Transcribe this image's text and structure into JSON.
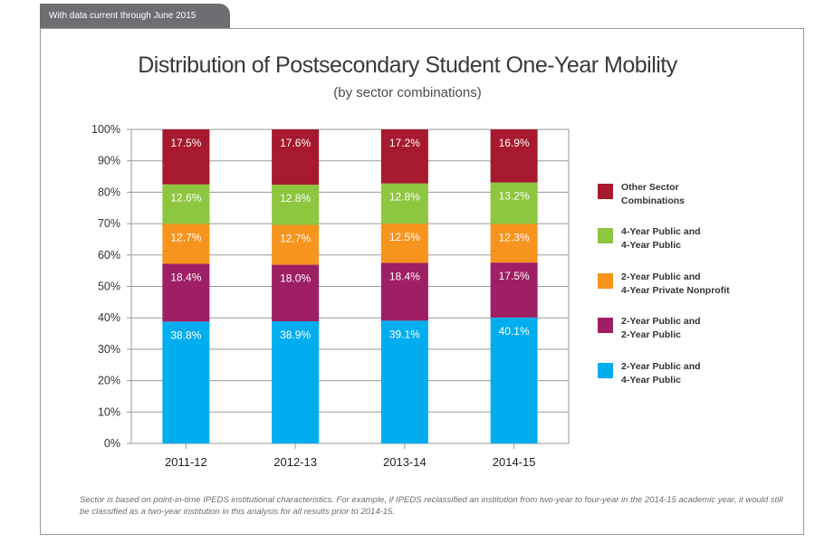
{
  "header_tab": "With data current through June 2015",
  "footnote": "Sector is based on point-in-time IPEDS institutional characteristics. For example, if IPEDS reclassified an institution from two-year to four-year in the 2014-15 academic year, it would still be classified as a two-year institution in this analysis for all results prior to 2014-15.",
  "chart_data": {
    "type": "bar",
    "stacked": true,
    "title": "Distribution of Postsecondary Student One-Year Mobility",
    "subtitle": "(by sector combinations)",
    "xlabel": "",
    "ylabel": "",
    "ylim": [
      0,
      100
    ],
    "yticks": [
      "0%",
      "10%",
      "20%",
      "30%",
      "40%",
      "50%",
      "60%",
      "70%",
      "80%",
      "90%",
      "100%"
    ],
    "grid": true,
    "legend_position": "right",
    "categories": [
      "2011-12",
      "2012-13",
      "2013-14",
      "2014-15"
    ],
    "series": [
      {
        "name": "2-Year Public and 4-Year Public",
        "color": "#00aeef",
        "values": [
          38.8,
          38.9,
          39.1,
          40.1
        ],
        "labels": [
          "38.8%",
          "38.9%",
          "39.1%",
          "40.1%"
        ]
      },
      {
        "name": "2-Year Public and 2-Year Public",
        "color": "#9e1f63",
        "values": [
          18.4,
          18.0,
          18.4,
          17.5
        ],
        "labels": [
          "18.4%",
          "18.0%",
          "18.4%",
          "17.5%"
        ]
      },
      {
        "name": "2-Year Public and 4-Year Private Nonprofit",
        "color": "#f7941d",
        "values": [
          12.7,
          12.7,
          12.5,
          12.3
        ],
        "labels": [
          "12.7%",
          "12.7%",
          "12.5%",
          "12.3%"
        ]
      },
      {
        "name": "4-Year Public and 4-Year Public",
        "color": "#8dc63f",
        "values": [
          12.6,
          12.8,
          12.8,
          13.2
        ],
        "labels": [
          "12.6%",
          "12.8%",
          "12.8%",
          "13.2%"
        ]
      },
      {
        "name": "Other Sector Combinations",
        "color": "#a6192e",
        "values": [
          17.5,
          17.6,
          17.2,
          16.9
        ],
        "labels": [
          "17.5%",
          "17.6%",
          "17.2%",
          "16.9%"
        ]
      }
    ],
    "legend": [
      {
        "label": "Other Sector\nCombinations",
        "color": "#a6192e"
      },
      {
        "label": "4-Year Public and\n4-Year Public",
        "color": "#8dc63f"
      },
      {
        "label": "2-Year Public and\n4-Year Private Nonprofit",
        "color": "#f7941d"
      },
      {
        "label": "2-Year Public and\n2-Year Public",
        "color": "#9e1f63"
      },
      {
        "label": "2-Year Public and\n4-Year Public",
        "color": "#00aeef"
      }
    ]
  }
}
